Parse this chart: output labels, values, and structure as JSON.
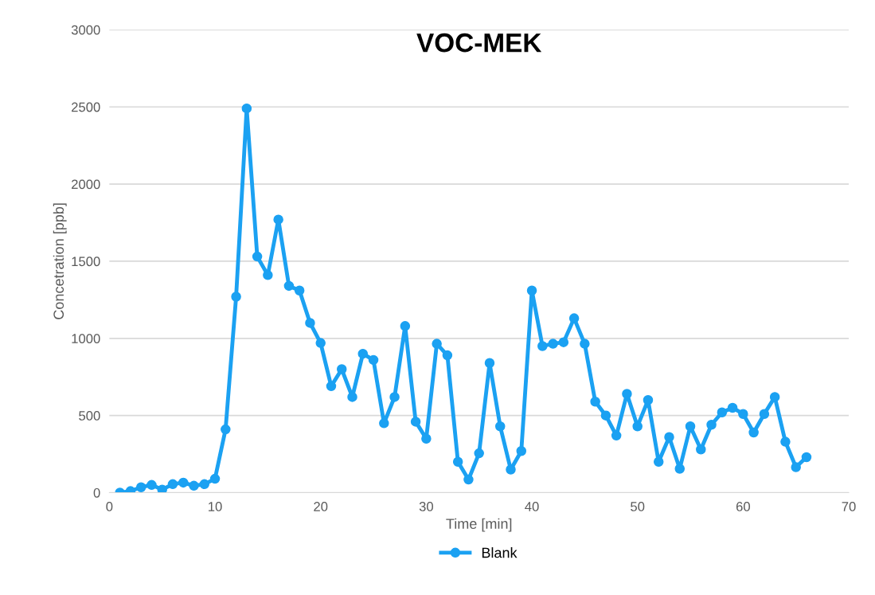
{
  "chart_data": {
    "type": "line",
    "title": "VOC-MEK",
    "xlabel": "Time [min]",
    "ylabel": "Concetration [ppb]",
    "x": [
      1,
      2,
      3,
      4,
      5,
      6,
      7,
      8,
      9,
      10,
      11,
      12,
      13,
      14,
      15,
      16,
      17,
      18,
      19,
      20,
      21,
      22,
      23,
      24,
      25,
      26,
      27,
      28,
      29,
      30,
      31,
      32,
      33,
      34,
      35,
      36,
      37,
      38,
      39,
      40,
      41,
      42,
      43,
      44,
      45,
      46,
      47,
      48,
      49,
      50,
      51,
      52,
      53,
      54,
      55,
      56,
      57,
      58,
      59,
      60,
      61,
      62,
      63,
      64,
      65,
      66
    ],
    "series": [
      {
        "name": "Blank",
        "color": "#1ba1f2",
        "values": [
          0,
          10,
          35,
          50,
          20,
          55,
          65,
          45,
          55,
          90,
          410,
          1270,
          2490,
          1530,
          1410,
          1770,
          1340,
          1310,
          1100,
          970,
          690,
          800,
          620,
          900,
          860,
          450,
          620,
          1080,
          460,
          350,
          965,
          890,
          200,
          85,
          255,
          840,
          430,
          150,
          270,
          1310,
          950,
          965,
          975,
          1130,
          965,
          590,
          500,
          370,
          640,
          430,
          600,
          200,
          360,
          155,
          430,
          280,
          440,
          520,
          550,
          510,
          390,
          510,
          620,
          330,
          165,
          230
        ]
      }
    ],
    "xlim": [
      0,
      70
    ],
    "xticks": [
      0,
      10,
      20,
      30,
      40,
      50,
      60,
      70
    ],
    "ylim": [
      0,
      3000
    ],
    "yticks": [
      0,
      500,
      1000,
      1500,
      2000,
      2500,
      3000
    ],
    "grid": "y",
    "legend": "bottom",
    "marker": "circle",
    "line_style": "solid"
  }
}
